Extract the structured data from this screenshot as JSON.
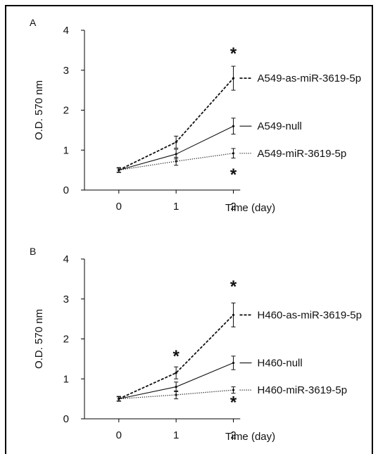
{
  "chart_data": [
    {
      "type": "line",
      "panel": "A",
      "x": [
        0,
        1,
        2
      ],
      "xticks": [
        "0",
        "1",
        "2"
      ],
      "xlabel": "Time (day)",
      "ylabel": "O.D. 570 nm",
      "yticks": [
        "0",
        "1",
        "2",
        "3",
        "4"
      ],
      "ylim": [
        0,
        4
      ],
      "xlim": [
        -0.6,
        2.35
      ],
      "series": [
        {
          "name": "A549-as-miR-3619-5p",
          "style": "dashed",
          "y": [
            0.5,
            1.2,
            2.8
          ],
          "err": [
            0.06,
            0.15,
            0.3
          ]
        },
        {
          "name": "A549-null",
          "style": "solid",
          "y": [
            0.5,
            0.9,
            1.6
          ],
          "err": [
            0.06,
            0.12,
            0.2
          ]
        },
        {
          "name": "A549-miR-3619-5p",
          "style": "dotted",
          "y": [
            0.5,
            0.72,
            0.92
          ],
          "err": [
            0.05,
            0.1,
            0.12
          ]
        }
      ],
      "annotations": [
        {
          "text": "*",
          "x": 2,
          "y": 3.45
        },
        {
          "text": "*",
          "x": 2,
          "y": 0.42
        }
      ]
    },
    {
      "type": "line",
      "panel": "B",
      "x": [
        0,
        1,
        2
      ],
      "xticks": [
        "0",
        "1",
        "2"
      ],
      "xlabel": "Time (day)",
      "ylabel": "O.D. 570 nm",
      "yticks": [
        "0",
        "1",
        "2",
        "3",
        "4"
      ],
      "ylim": [
        0,
        4
      ],
      "xlim": [
        -0.6,
        2.35
      ],
      "series": [
        {
          "name": "H460-as-miR-3619-5p",
          "style": "dashed",
          "y": [
            0.5,
            1.15,
            2.6
          ],
          "err": [
            0.06,
            0.15,
            0.3
          ]
        },
        {
          "name": "H460-null",
          "style": "solid",
          "y": [
            0.5,
            0.8,
            1.4
          ],
          "err": [
            0.06,
            0.12,
            0.17
          ]
        },
        {
          "name": "H460-miR-3619-5p",
          "style": "dotted",
          "y": [
            0.5,
            0.6,
            0.72
          ],
          "err": [
            0.05,
            0.1,
            0.08
          ]
        }
      ],
      "annotations": [
        {
          "text": "*",
          "x": 1,
          "y": 1.6
        },
        {
          "text": "*",
          "x": 2,
          "y": 3.35
        },
        {
          "text": "*",
          "x": 2,
          "y": 0.45
        }
      ]
    }
  ]
}
